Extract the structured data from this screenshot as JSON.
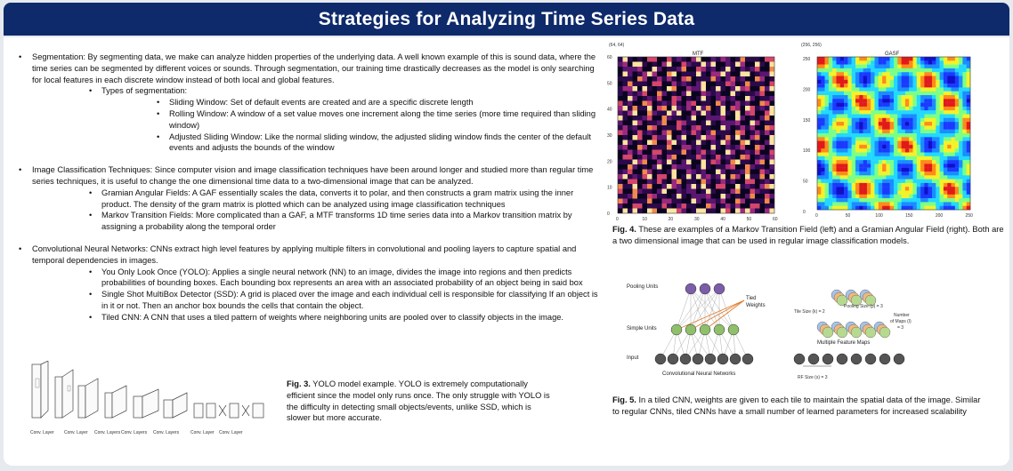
{
  "title": "Strategies for Analyzing Time Series Data",
  "left": {
    "segmentation": "Segmentation: By segmenting data, we make can analyze hidden properties of the underlying data. A well known example of this is sound data, where the time series can be segmented by different voices or sounds. Through segmentation, our training time drastically decreases as the model is only searching for local features in each discrete window instead of both local and global features.",
    "types_heading": "Types of segmentation:",
    "types": [
      "Sliding Window: Set of default events are created and are a specific discrete length",
      "Rolling Window: A window of a set value moves one increment along the time series (more time required than sliding window)",
      "Adjusted Sliding Window: Like the normal sliding window, the adjusted sliding window finds the center of the default events and adjusts the bounds of the window"
    ],
    "image_classification": "Image Classification Techniques: Since computer vision and image classification techniques have been around longer and studied more than regular time series techniques, it is useful to change the one dimensional time data to a two-dimensional image that can be analyzed.",
    "image_items": [
      "Gramian Angular Fields: A GAF essentially scales the data, converts it to polar, and then constructs a gram matrix using the inner product. The density of the gram matrix is plotted which can be analyzed using image classification techniques",
      "Markov Transition Fields: More complicated than a GAF, a MTF transforms 1D time series data into a Markov transition matrix by assigning a probability along the temporal order"
    ],
    "cnn": "Convolutional Neural Networks: CNNs extract high level features by applying multiple filters in convolutional and pooling layers to capture spatial and temporal dependencies in images.",
    "cnn_items": [
      "You Only Look Once (YOLO): Applies a single neural network (NN) to an image, divides the image into regions and then predicts probabilities of bounding boxes. Each bounding box represents an area with an associated probability of an object being in said box",
      "Single Shot MultiBox Detector (SSD): A grid is placed over the image and each individual cell is responsible for classifying If an object is in it or not. Then an anchor box bounds the cells that contain the object.",
      "Tiled CNN: A CNN that uses a tiled pattern of weights where neighboring units are pooled over to classify objects in the image."
    ]
  },
  "fig3": {
    "label": "Fig. 3.",
    "text": " YOLO model example. YOLO is extremely computationally efficient since the model only runs once. The only struggle with YOLO is the difficulty in detecting small objects/events, unlike SSD, which is slower but more accurate.",
    "layer_labels": [
      "Conv. Layer",
      "Conv. Layer",
      "Conv. Layers",
      "Conv. Layers",
      "Conv. Layers",
      "Conv. Layer",
      "Conv. Layer"
    ]
  },
  "fig4": {
    "label": "Fig. 4.",
    "text": " These are examples of a Markov Transition Field (left) and a Gramian Angular Field (right). Both are a two dimensional image that can be used in regular image classification models.",
    "mtf_title": "MTF",
    "mtf_dims": "(64, 64)",
    "gasf_title": "GASF",
    "gasf_dims": "(256, 256)",
    "mtf_yticks": [
      "60",
      "50",
      "40",
      "30",
      "20",
      "10",
      "0"
    ],
    "mtf_xticks": [
      "0",
      "10",
      "20",
      "30",
      "40",
      "50",
      "60"
    ],
    "gasf_yticks": [
      "250",
      "200",
      "150",
      "100",
      "50",
      "0"
    ],
    "gasf_xticks": [
      "0",
      "50",
      "100",
      "150",
      "200",
      "250"
    ]
  },
  "fig5": {
    "label": "Fig. 5.",
    "text": " In a tiled CNN, weights are given to each tile to maintain the spatial data of the image. Similar to regular CNNs,  tiled CNNs have a small number of learned parameters for increased scalability",
    "pooling_units": "Pooling Units",
    "tied": "Tied",
    "weights": "Weights",
    "simple_units": "Simple Units",
    "input": "Input",
    "cnn_caption": "Convolutional Neural Networks",
    "tile_size_k": "Tile Size (k) = 2",
    "pooling_size": "Pooling Size (p) = 3",
    "number_of_maps": "Number",
    "of_maps": "of Maps (l)",
    "eq3": "= 3",
    "multiple_feature_maps": "Multiple Feature Maps",
    "rf_size": "RF Size (s) = 3"
  },
  "colors": {
    "title_bar": "#0e2a6b",
    "background": "#e6e9ee",
    "panel": "#ffffff",
    "weight_lines": "#e07a2a",
    "pool_units": "#7b5ea7",
    "input_units": "#555555",
    "simple_units": "#8fbf6a"
  },
  "icons": [
    "yolo-network-diagram",
    "mtf-heatmap",
    "gasf-heatmap",
    "tiled-cnn-diagram"
  ]
}
